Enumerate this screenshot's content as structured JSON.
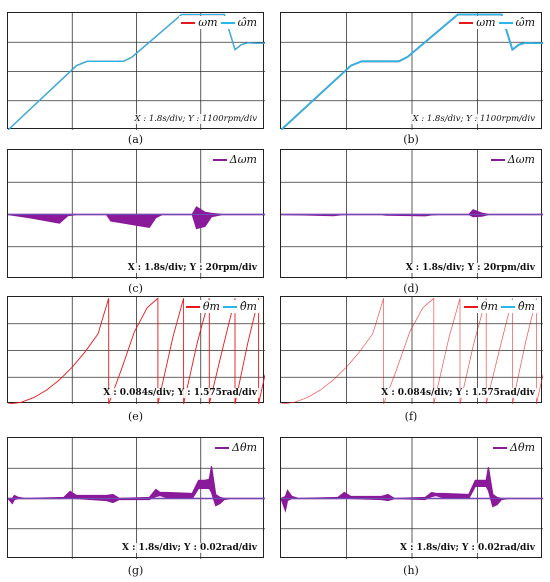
{
  "panels": {
    "a": {
      "caption": "(a)",
      "scale": "X : 1.8s/div; Y : 1100rpm/div",
      "legend": [
        "ωm",
        "ω̂m"
      ]
    },
    "b": {
      "caption": "(b)",
      "scale": "X : 1.8s/div; Y : 1100rpm/div",
      "legend": [
        "ωm",
        "ω̂m"
      ]
    },
    "c": {
      "caption": "(c)",
      "scale": "X : 1.8s/div; Y : 20rpm/div",
      "legend": [
        "Δωm"
      ]
    },
    "d": {
      "caption": "(d)",
      "scale": "X : 1.8s/div; Y : 20rpm/div",
      "legend": [
        "Δωm"
      ]
    },
    "e": {
      "caption": "(e)",
      "scale": "X : 0.084s/div; Y : 1.575rad/div",
      "legend": [
        "θm",
        "θ̂m"
      ]
    },
    "f": {
      "caption": "(f)",
      "scale": "X : 0.084s/div; Y : 1.575rad/div",
      "legend": [
        "θm",
        "θ̂m"
      ]
    },
    "g": {
      "caption": "(g)",
      "scale": "X : 1.8s/div; Y : 0.02rad/div",
      "legend": [
        "Δθm"
      ]
    },
    "h": {
      "caption": "(h)",
      "scale": "X : 1.8s/div; Y : 0.02rad/div",
      "legend": [
        "Δθm"
      ]
    }
  },
  "colors": {
    "actual": "#e8191c",
    "estimated": "#29b6e8",
    "error": "#8b1a9b",
    "grid": "#333333"
  },
  "chart_data": [
    {
      "id": "a",
      "type": "line",
      "xlim": [
        0,
        6
      ],
      "ylim": [
        0,
        4
      ],
      "series": [
        {
          "name": "ωm",
          "x": [
            0,
            1.6,
            1.85,
            2.7,
            2.9,
            4.05,
            4.25,
            5.05,
            5.3,
            5.45,
            5.6,
            5.8,
            6
          ],
          "y": [
            0,
            2.2,
            2.35,
            2.35,
            2.5,
            3.95,
            3.95,
            3.95,
            2.75,
            2.92,
            2.98,
            2.97,
            2.97
          ]
        },
        {
          "name": "ω̂m",
          "x": [
            0,
            1.6,
            1.85,
            2.7,
            2.9,
            4.05,
            4.25,
            5.05,
            5.3,
            5.45,
            5.6,
            5.8,
            6
          ],
          "y": [
            0,
            2.2,
            2.35,
            2.35,
            2.5,
            3.95,
            3.95,
            3.95,
            2.75,
            2.92,
            2.98,
            2.97,
            2.97
          ]
        }
      ]
    },
    {
      "id": "b",
      "type": "line",
      "xlim": [
        0,
        6
      ],
      "ylim": [
        0,
        4
      ],
      "series": [
        {
          "name": "ωm",
          "x": [
            0,
            1.6,
            1.85,
            2.7,
            2.9,
            4.05,
            4.25,
            5.05,
            5.3,
            5.45,
            5.6,
            5.8,
            6
          ],
          "y": [
            0,
            2.2,
            2.35,
            2.35,
            2.5,
            3.95,
            3.95,
            3.95,
            2.75,
            2.92,
            2.98,
            2.97,
            2.97
          ]
        },
        {
          "name": "ω̂m",
          "x": [
            0,
            1.6,
            1.85,
            2.7,
            2.9,
            4.05,
            4.25,
            5.05,
            5.3,
            5.45,
            5.6,
            5.8,
            6
          ],
          "y": [
            0,
            2.2,
            2.35,
            2.35,
            2.5,
            3.95,
            3.95,
            3.95,
            2.75,
            2.92,
            2.98,
            2.97,
            2.97
          ]
        }
      ]
    },
    {
      "id": "c",
      "type": "area",
      "xlim": [
        0,
        6
      ],
      "ylim": [
        -3,
        3
      ],
      "series": [
        {
          "name": "Δωm",
          "x": [
            0,
            0.5,
            1.2,
            1.4,
            1.6,
            2.3,
            2.4,
            3.3,
            3.45,
            3.6,
            4.3,
            4.4,
            4.6,
            4.75,
            5.0,
            6
          ],
          "upper": [
            0,
            0,
            0,
            0,
            0,
            0,
            0,
            0,
            0,
            0,
            0,
            0.35,
            0.1,
            0.05,
            0,
            0
          ],
          "lower": [
            0,
            -0.15,
            -0.4,
            -0.05,
            0,
            0,
            -0.3,
            -0.6,
            -0.15,
            0,
            0,
            -0.65,
            -0.55,
            -0.1,
            0,
            0
          ]
        }
      ]
    },
    {
      "id": "d",
      "type": "area",
      "xlim": [
        0,
        6
      ],
      "ylim": [
        -3,
        3
      ],
      "series": [
        {
          "name": "Δωm",
          "x": [
            0,
            0.5,
            1.2,
            1.4,
            1.6,
            2.3,
            2.4,
            3.3,
            3.45,
            3.6,
            4.3,
            4.4,
            4.6,
            4.75,
            5.0,
            6
          ],
          "upper": [
            0,
            0,
            0,
            0,
            0,
            0,
            0,
            0,
            0,
            0,
            0,
            0.22,
            0.06,
            0,
            0,
            0
          ],
          "lower": [
            0,
            -0.02,
            -0.05,
            -0.01,
            0,
            0,
            -0.03,
            -0.06,
            -0.02,
            0,
            0,
            -0.1,
            -0.08,
            0,
            0,
            0
          ]
        }
      ]
    },
    {
      "id": "e",
      "type": "line",
      "xlim": [
        0,
        6
      ],
      "ylim": [
        0,
        4
      ],
      "series": [
        {
          "name": "θm",
          "x": [
            0,
            0.3,
            0.6,
            0.9,
            1.2,
            1.5,
            1.8,
            2.1,
            2.35,
            2.35,
            2.65,
            2.95,
            3.25,
            3.5,
            3.5,
            3.85,
            4.1,
            4.1,
            4.42,
            4.7,
            4.7,
            5.0,
            5.3,
            5.3,
            5.6,
            5.85,
            5.85,
            6
          ],
          "y": [
            0,
            0.06,
            0.24,
            0.52,
            0.9,
            1.38,
            1.95,
            2.62,
            3.95,
            0,
            1.3,
            2.7,
            3.6,
            3.95,
            0,
            2.5,
            3.95,
            0,
            2.3,
            3.95,
            0,
            2.0,
            3.95,
            0,
            2.3,
            3.95,
            0,
            1.1
          ]
        },
        {
          "name": "θ̂m",
          "x": [],
          "y": []
        }
      ]
    },
    {
      "id": "f",
      "type": "line",
      "xlim": [
        0,
        6
      ],
      "ylim": [
        0,
        4
      ],
      "series": [
        {
          "name": "θm",
          "x": [
            0,
            0.3,
            0.6,
            0.9,
            1.2,
            1.5,
            1.8,
            2.1,
            2.35,
            2.35,
            2.65,
            2.95,
            3.25,
            3.5,
            3.5,
            3.85,
            4.1,
            4.1,
            4.42,
            4.7,
            4.7,
            5.0,
            5.3,
            5.3,
            5.6,
            5.85,
            5.85,
            6
          ],
          "y": [
            0,
            0.06,
            0.24,
            0.52,
            0.9,
            1.38,
            1.95,
            2.62,
            3.95,
            0,
            1.3,
            2.7,
            3.6,
            3.95,
            0,
            2.5,
            3.95,
            0,
            2.3,
            3.95,
            0,
            2.0,
            3.95,
            0,
            2.3,
            3.95,
            0,
            1.1
          ]
        },
        {
          "name": "θ̂m",
          "x": [],
          "y": []
        }
      ]
    },
    {
      "id": "g",
      "type": "area",
      "xlim": [
        0,
        6
      ],
      "ylim": [
        -3,
        3
      ],
      "series": [
        {
          "name": "Δθm",
          "x": [
            0,
            0.1,
            0.15,
            0.25,
            0.4,
            1.3,
            1.45,
            1.6,
            2.3,
            2.45,
            2.6,
            3.3,
            3.45,
            3.55,
            3.7,
            4.3,
            4.45,
            4.6,
            4.7,
            4.75,
            4.85,
            4.95,
            5.05,
            5.2,
            6
          ],
          "upper": [
            0,
            0,
            0.15,
            0.05,
            0,
            0.05,
            0.35,
            0.15,
            0.15,
            0.2,
            0,
            0.05,
            0.45,
            0.3,
            0.3,
            0.25,
            0.9,
            0.9,
            0.95,
            1.6,
            0.2,
            0.05,
            0,
            0,
            0
          ],
          "lower": [
            0,
            -0.25,
            -0.05,
            0,
            0,
            0,
            0.05,
            0,
            -0.1,
            -0.2,
            -0.05,
            -0.05,
            0.1,
            0.15,
            0.05,
            0,
            0.5,
            0.5,
            0.5,
            0.3,
            -0.35,
            -0.25,
            -0.05,
            0,
            0
          ]
        }
      ]
    },
    {
      "id": "h",
      "type": "area",
      "xlim": [
        0,
        6
      ],
      "ylim": [
        -3,
        3
      ],
      "series": [
        {
          "name": "Δθm",
          "x": [
            0,
            0.1,
            0.15,
            0.25,
            0.4,
            1.3,
            1.45,
            1.6,
            2.3,
            2.45,
            2.6,
            3.3,
            3.45,
            3.55,
            3.7,
            4.3,
            4.45,
            4.6,
            4.7,
            4.75,
            4.85,
            4.95,
            5.05,
            5.2,
            6
          ],
          "upper": [
            0,
            0.1,
            0.4,
            0.1,
            0,
            0.05,
            0.3,
            0.1,
            0.1,
            0.2,
            0,
            0.05,
            0.3,
            0.25,
            0.25,
            0.2,
            0.9,
            0.9,
            0.9,
            1.55,
            0.2,
            0.05,
            0,
            0,
            0
          ],
          "lower": [
            0,
            -0.6,
            -0.1,
            0,
            0,
            0,
            0.05,
            0,
            -0.05,
            -0.1,
            0,
            -0.05,
            0.1,
            0.15,
            0.05,
            0,
            0.6,
            0.6,
            0.6,
            0.4,
            -0.4,
            -0.3,
            -0.05,
            0,
            0
          ]
        }
      ]
    }
  ]
}
